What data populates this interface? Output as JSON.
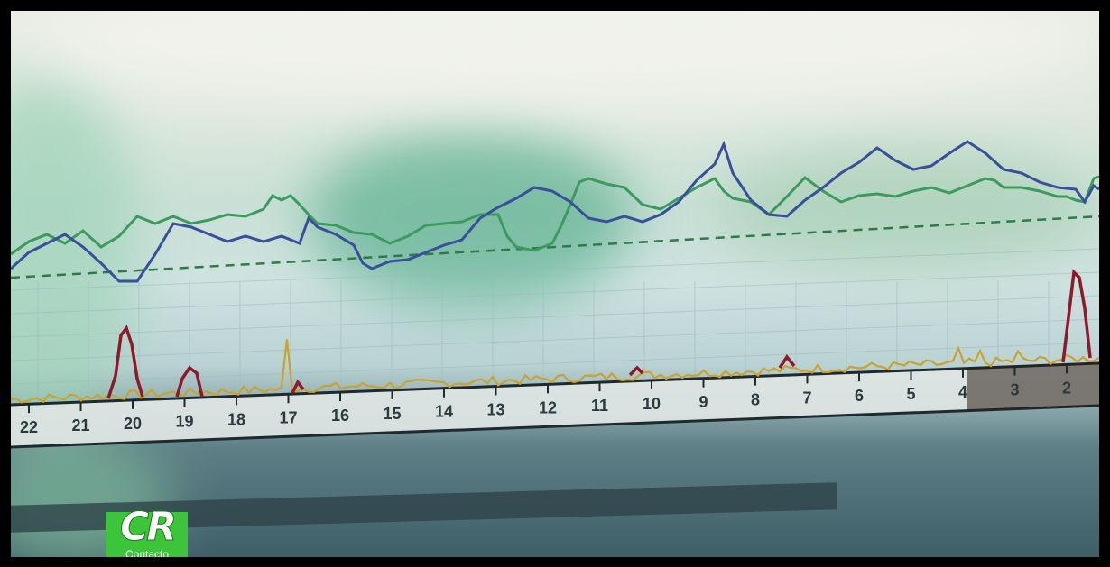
{
  "ruler_ticks": [
    "22",
    "21",
    "20",
    "19",
    "18",
    "17",
    "16",
    "15",
    "14",
    "13",
    "12",
    "11",
    "10",
    "9",
    "8",
    "7",
    "6",
    "5",
    "4",
    "3",
    "2"
  ],
  "logo": {
    "mark": "CR",
    "caption": "Contacto"
  },
  "colors": {
    "green_line": "#3d9a5e",
    "blue_line": "#3a4f9a",
    "dashed_line": "#2f7a4a",
    "red_spikes": "#8c1a2a",
    "yellow_spikes": "#c9a230",
    "logo_bg": "#3cc43a"
  }
}
